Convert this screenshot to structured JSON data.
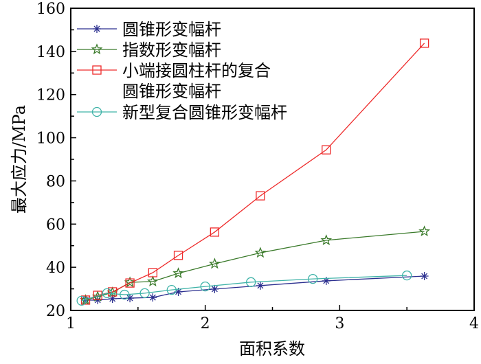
{
  "chart_data": {
    "type": "line",
    "title": "",
    "xlabel": "面积系数",
    "ylabel": "最大应力/MPa",
    "xlim": [
      1,
      4
    ],
    "ylim": [
      20,
      160
    ],
    "xticks": [
      "1",
      "2",
      "3",
      "4"
    ],
    "yticks": [
      "20",
      "40",
      "60",
      "80",
      "100",
      "120",
      "140",
      "160"
    ],
    "grid": false,
    "legend_position": "top-left",
    "series": [
      {
        "name": "圆锥形变幅杆",
        "color": "#2b2f8f",
        "marker": "asterisk",
        "x": [
          1.11,
          1.2,
          1.31,
          1.44,
          1.61,
          1.8,
          2.07,
          2.41,
          2.9,
          3.63
        ],
        "y": [
          24.8,
          24.8,
          25.4,
          25.7,
          26.0,
          28.6,
          29.9,
          31.5,
          33.7,
          35.9
        ]
      },
      {
        "name": "指数形变幅杆",
        "color": "#3a7a2a",
        "marker": "star",
        "x": [
          1.11,
          1.2,
          1.31,
          1.44,
          1.61,
          1.8,
          2.07,
          2.41,
          2.9,
          3.63
        ],
        "y": [
          24.8,
          26.4,
          28.3,
          33.0,
          33.4,
          37.2,
          41.6,
          46.7,
          52.5,
          56.6
        ]
      },
      {
        "name": "小端接圆柱杆的复合圆锥形变幅杆",
        "name_lines": [
          "小端接圆柱杆的复合",
          "圆锥形变幅杆"
        ],
        "color": "#ee2a2a",
        "marker": "square",
        "x": [
          1.11,
          1.2,
          1.31,
          1.44,
          1.61,
          1.8,
          2.07,
          2.41,
          2.9,
          3.63
        ],
        "y": [
          24.8,
          27.0,
          28.6,
          32.7,
          37.5,
          45.5,
          56.3,
          73.1,
          94.4,
          143.8
        ]
      },
      {
        "name": "新型复合圆锥形变幅杆",
        "color": "#3fb3a8",
        "marker": "circle",
        "x": [
          1.08,
          1.27,
          1.4,
          1.55,
          1.75,
          2.0,
          2.34,
          2.8,
          3.5
        ],
        "y": [
          24.5,
          28.0,
          27.3,
          28.0,
          29.5,
          31.1,
          33.1,
          34.6,
          36.2
        ]
      }
    ]
  }
}
